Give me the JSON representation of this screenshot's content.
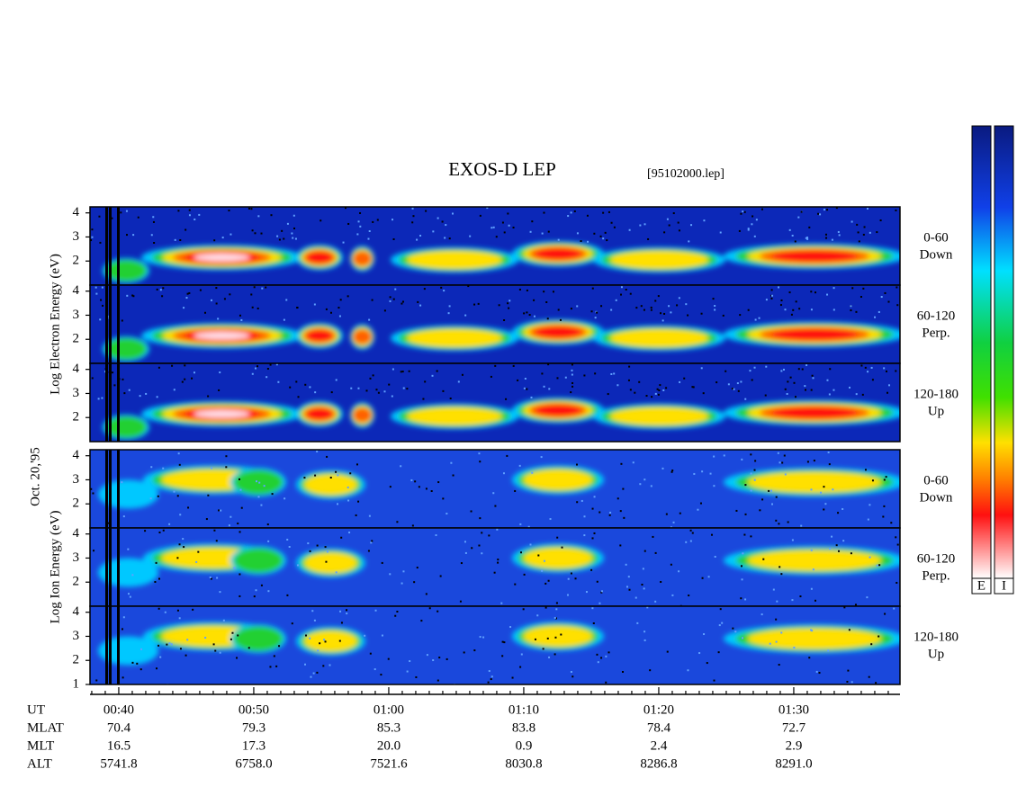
{
  "chart_data": {
    "type": "spectrogram",
    "title": "EXOS-D LEP",
    "subtitle": "[95102000.lep]",
    "date_label": "Oct. 20,'95",
    "ylim": [
      1,
      4.25
    ],
    "xlim": [
      37.87,
      97.87
    ],
    "xticks": [
      {
        "value": 40,
        "label": "00:40"
      },
      {
        "value": 50,
        "label": "00:50"
      },
      {
        "value": 60,
        "label": "01:00"
      },
      {
        "value": 70,
        "label": "01:10"
      },
      {
        "value": 80,
        "label": "01:20"
      },
      {
        "value": 90,
        "label": "01:30"
      }
    ],
    "xminorticks": [
      38,
      39,
      41,
      42,
      43,
      44,
      45,
      46,
      47,
      48,
      49,
      51,
      52,
      53,
      54,
      55,
      56,
      57,
      58,
      59,
      61,
      62,
      63,
      64,
      65,
      66,
      67,
      68,
      69,
      71,
      72,
      73,
      74,
      75,
      76,
      77,
      78,
      79,
      81,
      82,
      83,
      84,
      85,
      86,
      87,
      88,
      89,
      91,
      92,
      93,
      94,
      95,
      96,
      97
    ],
    "groups": [
      {
        "ylabel": "Log Electron Energy (eV)",
        "panels": [
          {
            "label": [
              "0-60",
              "Down"
            ],
            "yticks": [
              2,
              3,
              4
            ]
          },
          {
            "label": [
              "60-120",
              "Perp."
            ],
            "yticks": [
              2,
              3,
              4
            ]
          },
          {
            "label": [
              "120-180",
              "Up"
            ],
            "yticks": [
              2,
              3,
              4
            ]
          }
        ]
      },
      {
        "ylabel": "Log Ion Energy (eV)",
        "panels": [
          {
            "label": [
              "0-60",
              "Down"
            ],
            "yticks": [
              2,
              3,
              4
            ]
          },
          {
            "label": [
              "60-120",
              "Perp."
            ],
            "yticks": [
              2,
              3,
              4
            ]
          },
          {
            "label": [
              "120-180",
              "Up"
            ],
            "yticks": [
              1,
              2,
              3,
              4
            ]
          }
        ]
      }
    ],
    "orbit": [
      {
        "name": "UT"
      },
      {
        "name": "MLAT",
        "values": [
          "70.4",
          "79.3",
          "85.3",
          "83.8",
          "78.4",
          "72.7"
        ]
      },
      {
        "name": "MLT",
        "values": [
          "16.5",
          "17.3",
          "20.0",
          "0.9",
          "2.4",
          "2.9"
        ]
      },
      {
        "name": "ALT",
        "values": [
          "5741.8",
          "6758.0",
          "7521.6",
          "8030.8",
          "8286.8",
          "8291.0"
        ]
      }
    ],
    "colorbars": [
      "E",
      "I"
    ]
  }
}
